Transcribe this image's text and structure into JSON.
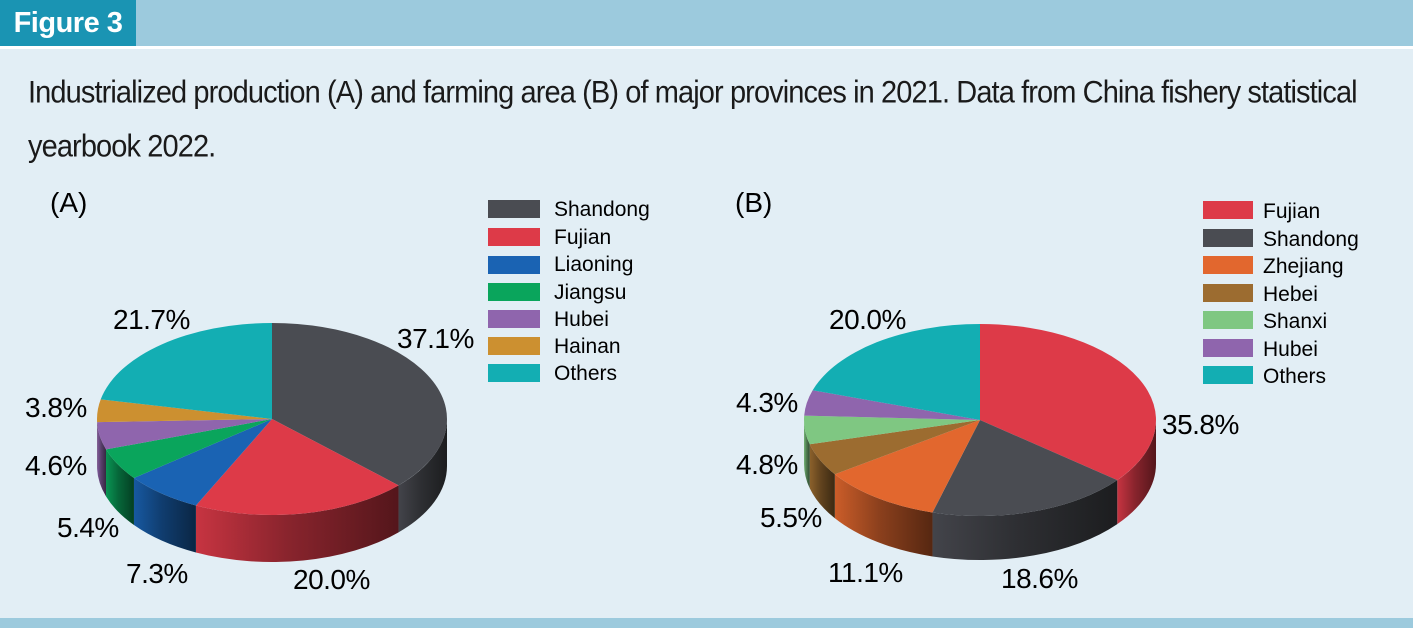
{
  "figure_label": "Figure 3",
  "caption": "Industrialized production (A) and farming area (B) of major provinces in 2021. Data from China fishery statistical yearbook 2022.",
  "chart_data": [
    {
      "type": "pie",
      "panel": "(A)",
      "labels": [
        "Shandong",
        "Fujian",
        "Liaoning",
        "Jiangsu",
        "Hubei",
        "Hainan",
        "Others"
      ],
      "values": [
        37.1,
        20.0,
        7.3,
        5.4,
        4.6,
        3.8,
        21.7
      ],
      "value_labels": [
        "37.1%",
        "20.0%",
        "7.3%",
        "5.4%",
        "4.6%",
        "3.8%",
        "21.7%"
      ],
      "colors": [
        "#4a4c52",
        "#dd3a48",
        "#1a63b3",
        "#0aa55c",
        "#8f65ad",
        "#cc9030",
        "#13aeb3"
      ],
      "legend_position": "right"
    },
    {
      "type": "pie",
      "panel": "(B)",
      "labels": [
        "Fujian",
        "Shandong",
        "Zhejiang",
        "Hebei",
        "Shanxi",
        "Hubei",
        "Others"
      ],
      "values": [
        35.8,
        18.6,
        11.1,
        5.5,
        4.8,
        4.3,
        20.0
      ],
      "value_labels": [
        "35.8%",
        "18.6%",
        "11.1%",
        "5.5%",
        "4.8%",
        "4.3%",
        "20.0%"
      ],
      "colors": [
        "#dd3a48",
        "#4a4c52",
        "#e2672e",
        "#9c6c30",
        "#7fc782",
        "#8f65ad",
        "#13aeb3"
      ],
      "legend_position": "top-right"
    }
  ]
}
